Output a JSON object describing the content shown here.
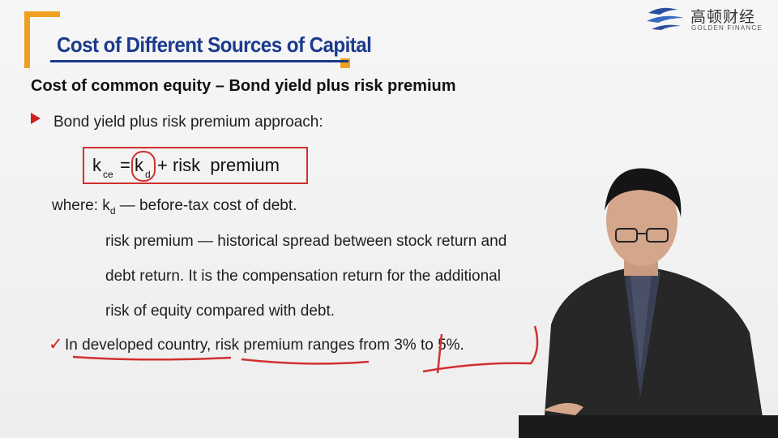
{
  "slide": {
    "title": "Cost of Different Sources of Capital",
    "subtitle": "Cost of common equity – Bond yield plus risk premium",
    "bullet": "Bond yield plus risk premium approach:",
    "formula": {
      "lhs": "k",
      "lhs_sub": "ce",
      "eq": "=",
      "kd": "k",
      "kd_sub": "d",
      "rhs": "+ risk  premium"
    },
    "where_prefix": "where: k",
    "where_sub": "d",
    "where_rest": " — before-tax cost of debt.",
    "definition_lines": [
      "risk premium — historical spread between stock return and",
      "debt return. It is the compensation return for the additional",
      "risk of equity compared with debt."
    ],
    "check_mark": "✓",
    "last_line": "In developed country, risk premium ranges from 3% to 5%."
  },
  "logo": {
    "cn": "高顿财经",
    "en": "GOLDEN FINANCE"
  },
  "colors": {
    "title": "#1b3a8c",
    "accent": "#f0a020",
    "annotation": "#d0302e"
  }
}
